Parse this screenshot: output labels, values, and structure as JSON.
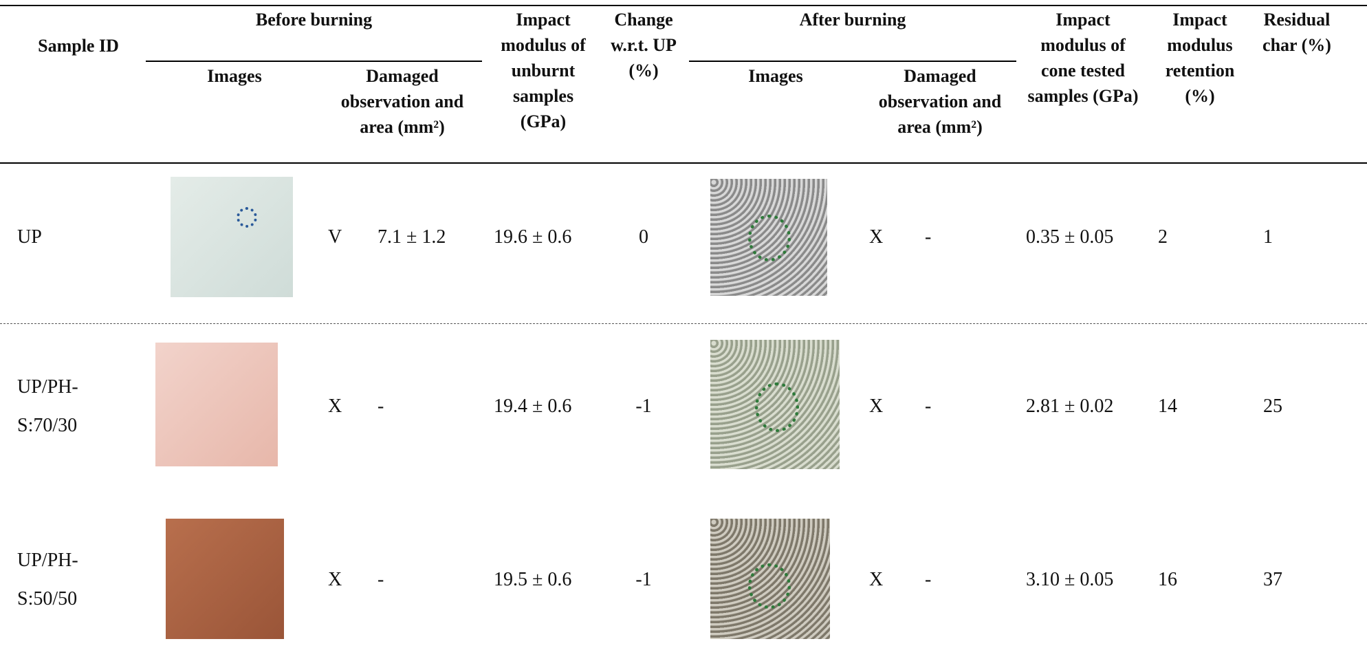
{
  "header": {
    "groups": [
      "Before burning",
      "After burning"
    ],
    "columns": [
      "Sample ID",
      "Images",
      "Damaged observation and area (mm²)",
      "Impact modulus of unburnt samples (GPa)",
      "Change w.r.t. UP (%)",
      "Images",
      "Damaged observation and area (mm²)",
      "Impact modulus of cone tested samples (GPa)",
      "Impact modulus retention (%)",
      "Residual char (%)"
    ]
  },
  "rows": [
    {
      "sample": "UP",
      "before_mark": "V",
      "before_area": "7.1 ± 1.2",
      "modulus": "19.6 ± 0.6",
      "change": "0",
      "after_mark": "X",
      "after_area": "-",
      "cone_modulus": "0.35 ± 0.05",
      "retention": "2",
      "char": "1"
    },
    {
      "sample": "UP/PH-S:70/30",
      "before_mark": "X",
      "before_area": "-",
      "modulus": "19.4 ± 0.6",
      "change": "-1",
      "after_mark": "X",
      "after_area": "-",
      "cone_modulus": "2.81 ± 0.02",
      "retention": "14",
      "char": "25"
    },
    {
      "sample": "UP/PH-S:50/50",
      "before_mark": "X",
      "before_area": "-",
      "modulus": "19.5 ± 0.6",
      "change": "-1",
      "after_mark": "X",
      "after_area": "-",
      "cone_modulus": "3.10 ± 0.05",
      "retention": "16",
      "char": "37"
    }
  ]
}
